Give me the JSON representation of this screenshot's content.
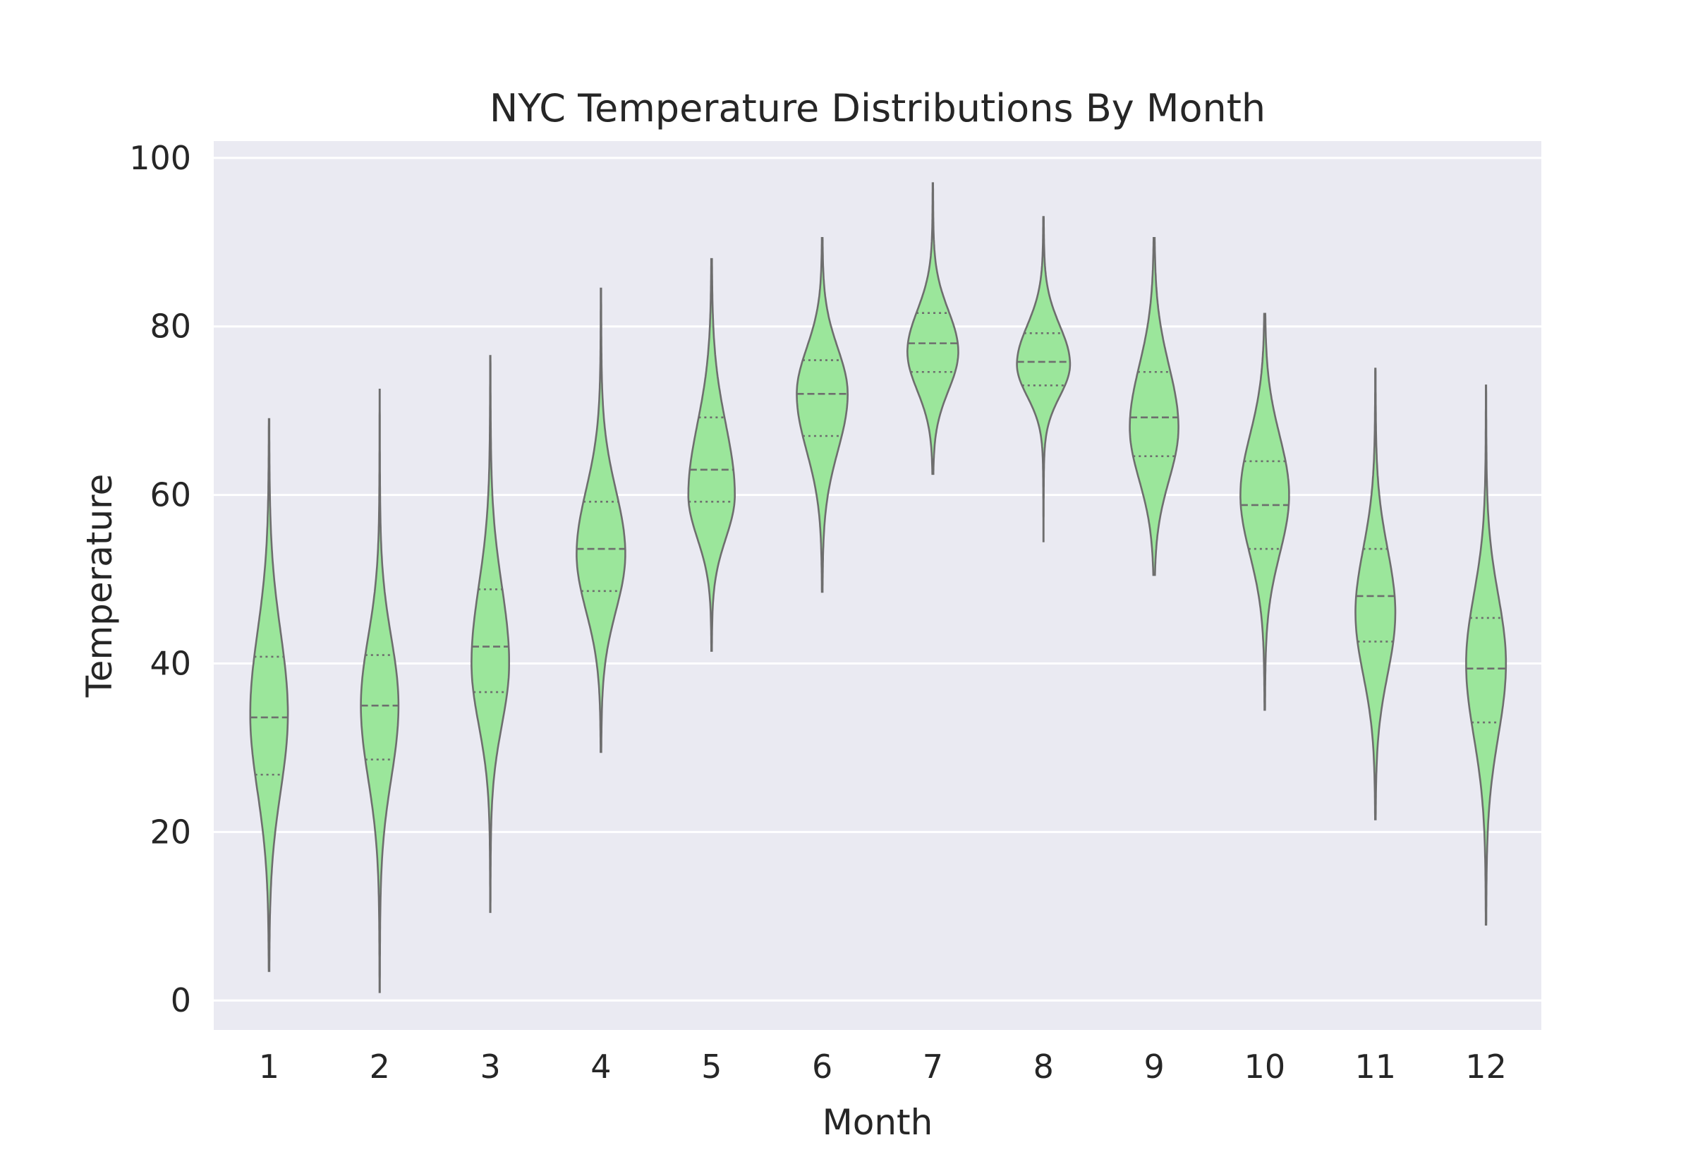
{
  "chart_data": {
    "type": "violin",
    "title": "NYC Temperature Distributions By Month",
    "xlabel": "Month",
    "ylabel": "Temperature",
    "ylim": [
      -3.5,
      102
    ],
    "yticks": [
      0,
      20,
      40,
      60,
      80,
      100
    ],
    "categories": [
      "1",
      "2",
      "3",
      "4",
      "5",
      "6",
      "7",
      "8",
      "9",
      "10",
      "11",
      "12"
    ],
    "grid": true,
    "colors": {
      "violin_fill": "#9be69b",
      "violin_stroke": "#6e6e6e",
      "plot_background": "#eaeaf2",
      "grid": "#ffffff"
    },
    "series": [
      {
        "category": "1",
        "min": 3.5,
        "max": 69,
        "q1": 26.8,
        "median": 33.6,
        "q3": 40.8,
        "mode": 34,
        "peak_halfwidth": 0.17
      },
      {
        "category": "2",
        "min": 1,
        "max": 72.5,
        "q1": 28.6,
        "median": 35.0,
        "q3": 41.0,
        "mode": 35,
        "peak_halfwidth": 0.17
      },
      {
        "category": "3",
        "min": 10.5,
        "max": 76.5,
        "q1": 36.6,
        "median": 42.0,
        "q3": 48.8,
        "mode": 40,
        "peak_halfwidth": 0.17
      },
      {
        "category": "4",
        "min": 29.5,
        "max": 84.5,
        "q1": 48.6,
        "median": 53.6,
        "q3": 59.2,
        "mode": 53,
        "peak_halfwidth": 0.22
      },
      {
        "category": "5",
        "min": 41.5,
        "max": 88,
        "q1": 59.2,
        "median": 63.0,
        "q3": 69.2,
        "mode": 60,
        "peak_halfwidth": 0.21
      },
      {
        "category": "6",
        "min": 48.5,
        "max": 90.5,
        "q1": 67.0,
        "median": 72.0,
        "q3": 76.0,
        "mode": 72,
        "peak_halfwidth": 0.23
      },
      {
        "category": "7",
        "min": 62.5,
        "max": 97,
        "q1": 74.6,
        "median": 78.0,
        "q3": 81.6,
        "mode": 77,
        "peak_halfwidth": 0.23
      },
      {
        "category": "8",
        "min": 54.5,
        "max": 93,
        "q1": 73.0,
        "median": 75.8,
        "q3": 79.2,
        "mode": 75.5,
        "peak_halfwidth": 0.24
      },
      {
        "category": "9",
        "min": 50.5,
        "max": 90.5,
        "q1": 64.6,
        "median": 69.2,
        "q3": 74.6,
        "mode": 68,
        "peak_halfwidth": 0.22
      },
      {
        "category": "10",
        "min": 34.5,
        "max": 81.5,
        "q1": 53.6,
        "median": 58.8,
        "q3": 64.0,
        "mode": 60,
        "peak_halfwidth": 0.22
      },
      {
        "category": "11",
        "min": 21.5,
        "max": 75,
        "q1": 42.6,
        "median": 48.0,
        "q3": 53.6,
        "mode": 46,
        "peak_halfwidth": 0.18
      },
      {
        "category": "12",
        "min": 9,
        "max": 73,
        "q1": 33.0,
        "median": 39.4,
        "q3": 45.4,
        "mode": 40,
        "peak_halfwidth": 0.18
      }
    ]
  }
}
